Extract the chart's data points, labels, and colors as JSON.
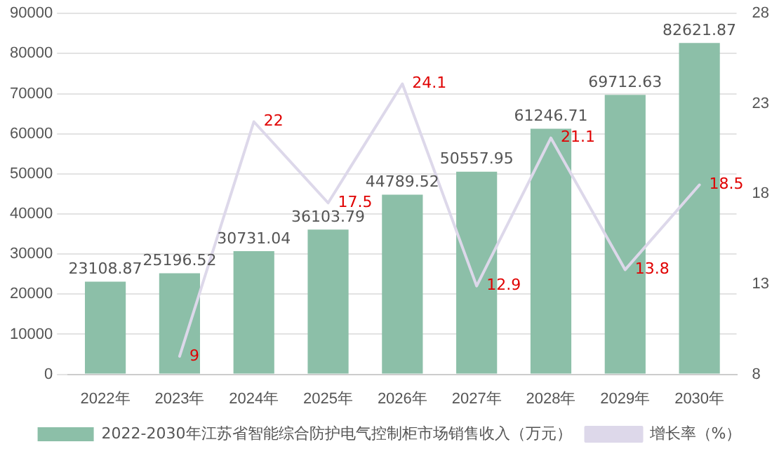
{
  "chart_data": {
    "type": "bar",
    "categories": [
      "2022年",
      "2023年",
      "2024年",
      "2025年",
      "2026年",
      "2027年",
      "2028年",
      "2029年",
      "2030年"
    ],
    "series": [
      {
        "name": "2022-2030年江苏省智能综合防护电气控制柜市场销售收入（万元）",
        "color": "#8cbfa8",
        "values": [
          23108.87,
          25196.52,
          30731.04,
          36103.79,
          44789.52,
          50557.95,
          61246.71,
          69712.63,
          82621.87
        ]
      },
      {
        "name": "增长率（%）",
        "type": "line",
        "axis": "y2",
        "color": "#ddd8ea",
        "values": [
          null,
          9,
          22,
          17.5,
          24.1,
          12.9,
          21.1,
          13.8,
          18.5
        ]
      }
    ],
    "ylim": [
      0,
      90000
    ],
    "yticks": [
      0,
      10000,
      20000,
      30000,
      40000,
      50000,
      60000,
      70000,
      80000,
      90000
    ],
    "y2lim": [
      8,
      28
    ],
    "y2ticks": [
      8,
      13,
      18,
      23,
      28
    ],
    "grid": "y",
    "legend": "bottom",
    "data_labels": true,
    "marker": "none"
  }
}
